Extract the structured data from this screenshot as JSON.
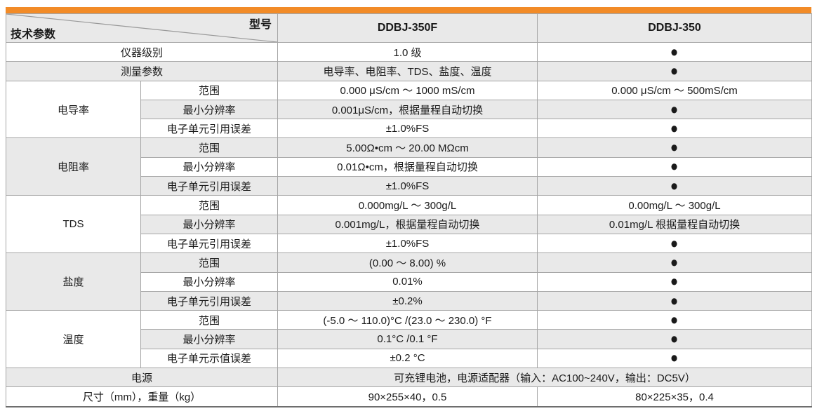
{
  "accent_color": "#F28B27",
  "table": {
    "corner": {
      "top_right": "型号",
      "bottom_left": "技术参数"
    },
    "columns": [
      "DDBJ-350F",
      "DDBJ-350"
    ],
    "rows": [
      {
        "shade": false,
        "cells": [
          {
            "t": "仪器级别",
            "cs": 2
          },
          {
            "t": "1.0 级"
          },
          {
            "t": "●"
          }
        ]
      },
      {
        "shade": true,
        "cells": [
          {
            "t": "测量参数",
            "cs": 2
          },
          {
            "t": "电导率、电阻率、TDS、盐度、温度"
          },
          {
            "t": "●"
          }
        ]
      },
      {
        "shade": false,
        "cells": [
          {
            "t": "电导率",
            "rs": 3,
            "group": true
          },
          {
            "t": "范围"
          },
          {
            "t": "0.000 μS/cm ～ 1000 mS/cm"
          },
          {
            "t": "0.000 μS/cm ～ 500mS/cm"
          }
        ]
      },
      {
        "shade": true,
        "cells": [
          {
            "t": "最小分辨率"
          },
          {
            "t": "0.001μS/cm，根据量程自动切换"
          },
          {
            "t": "●"
          }
        ]
      },
      {
        "shade": false,
        "cells": [
          {
            "t": "电子单元引用误差"
          },
          {
            "t": "±1.0%FS"
          },
          {
            "t": "●"
          }
        ]
      },
      {
        "shade": true,
        "cells": [
          {
            "t": "电阻率",
            "rs": 3,
            "group": true
          },
          {
            "t": "范围"
          },
          {
            "t": "5.00Ω•cm ～ 20.00 MΩcm"
          },
          {
            "t": "●"
          }
        ]
      },
      {
        "shade": false,
        "cells": [
          {
            "t": "最小分辨率"
          },
          {
            "t": "0.01Ω•cm，根据量程自动切换"
          },
          {
            "t": "●"
          }
        ]
      },
      {
        "shade": true,
        "cells": [
          {
            "t": "电子单元引用误差"
          },
          {
            "t": "±1.0%FS"
          },
          {
            "t": "●"
          }
        ]
      },
      {
        "shade": false,
        "cells": [
          {
            "t": "TDS",
            "rs": 3,
            "group": true
          },
          {
            "t": "范围"
          },
          {
            "t": "0.000mg/L ～ 300g/L"
          },
          {
            "t": "0.00mg/L ～ 300g/L"
          }
        ]
      },
      {
        "shade": true,
        "cells": [
          {
            "t": "最小分辨率"
          },
          {
            "t": "0.001mg/L，根据量程自动切换"
          },
          {
            "t": "0.01mg/L 根据量程自动切换"
          }
        ]
      },
      {
        "shade": false,
        "cells": [
          {
            "t": "电子单元引用误差"
          },
          {
            "t": "±1.0%FS"
          },
          {
            "t": "●"
          }
        ]
      },
      {
        "shade": true,
        "cells": [
          {
            "t": "盐度",
            "rs": 3,
            "group": true
          },
          {
            "t": "范围"
          },
          {
            "t": "(0.00 ～ 8.00) %"
          },
          {
            "t": "●"
          }
        ]
      },
      {
        "shade": false,
        "cells": [
          {
            "t": "最小分辨率"
          },
          {
            "t": "0.01%"
          },
          {
            "t": "●"
          }
        ]
      },
      {
        "shade": true,
        "cells": [
          {
            "t": "电子单元引用误差"
          },
          {
            "t": "±0.2%"
          },
          {
            "t": "●"
          }
        ]
      },
      {
        "shade": false,
        "cells": [
          {
            "t": "温度",
            "rs": 3,
            "group": true
          },
          {
            "t": "范围"
          },
          {
            "t": "(-5.0 ～ 110.0)°C /(23.0 ～ 230.0) °F"
          },
          {
            "t": "●"
          }
        ]
      },
      {
        "shade": true,
        "cells": [
          {
            "t": "最小分辨率"
          },
          {
            "t": "0.1°C /0.1 °F"
          },
          {
            "t": "●"
          }
        ]
      },
      {
        "shade": false,
        "cells": [
          {
            "t": "电子单元示值误差"
          },
          {
            "t": "±0.2 °C"
          },
          {
            "t": "●"
          }
        ]
      },
      {
        "shade": true,
        "cells": [
          {
            "t": "电源",
            "cs": 2
          },
          {
            "t": "可充锂电池，电源适配器（输入：AC100~240V，输出：DC5V）",
            "cs": 2
          }
        ]
      },
      {
        "shade": false,
        "cells": [
          {
            "t": "尺寸（mm），重量（kg）",
            "cs": 2
          },
          {
            "t": "90×255×40，0.5"
          },
          {
            "t": "80×225×35，0.4"
          }
        ]
      }
    ]
  }
}
